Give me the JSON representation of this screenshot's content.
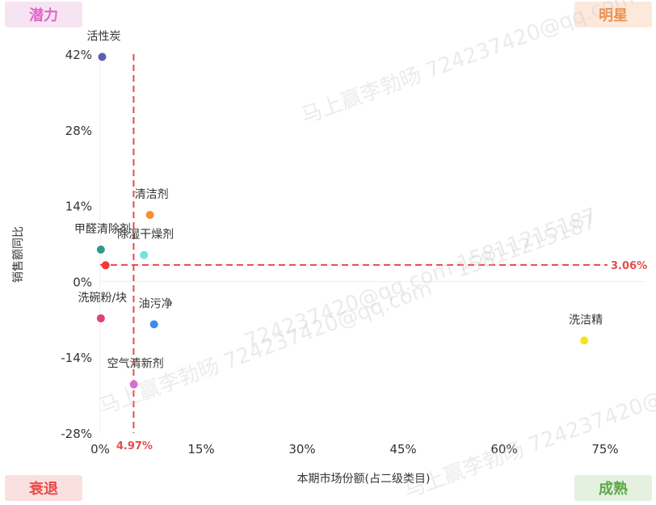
{
  "quadrants": {
    "top_left": {
      "label": "潜力",
      "color": "#e066c8",
      "bg": "#f7e4f3"
    },
    "top_right": {
      "label": "明星",
      "color": "#f0904e",
      "bg": "#fde9dc"
    },
    "bottom_left": {
      "label": "衰退",
      "color": "#e84a4a",
      "bg": "#fbe0e0"
    },
    "bottom_right": {
      "label": "成熟",
      "color": "#5ea84a",
      "bg": "#e3f1de"
    }
  },
  "watermarks": [
    "马上赢李勃旸 724237420@qq.com",
    "15811215187",
    "724237420@qq.com 15811215187",
    "马上赢李勃旸 724237420@qq.com",
    "马上赢李勃旸 724237420@"
  ],
  "chart_data": {
    "type": "scatter",
    "xlabel": "本期市场份额(占二级类目)",
    "ylabel": "销售额同比",
    "xlim": [
      0,
      75
    ],
    "ylim": [
      -28,
      42
    ],
    "x_ticks": [
      0,
      15,
      30,
      45,
      60,
      75
    ],
    "y_ticks": [
      42,
      28,
      14,
      0,
      -14,
      -28
    ],
    "x_tick_labels": [
      "0%",
      "15%",
      "30%",
      "45%",
      "60%",
      "75%"
    ],
    "y_tick_labels": [
      "42%",
      "28%",
      "14%",
      "0%",
      "-14%",
      "-28%"
    ],
    "reference_lines": {
      "x": {
        "value": 4.97,
        "label": "4.97%",
        "color": "#e84a4a"
      },
      "y": {
        "value": 3.06,
        "label": "3.06%",
        "color": "#e84a4a"
      }
    },
    "points": [
      {
        "name": "活性炭",
        "x": 0.3,
        "y": 41.5,
        "color": "#5b5fb5"
      },
      {
        "name": "清洁剂",
        "x": 7.4,
        "y": 12.3,
        "color": "#f5902e"
      },
      {
        "name": "甲醛清除剂",
        "x": 0.1,
        "y": 5.9,
        "color": "#2e9a8a"
      },
      {
        "name": "除湿干燥剂",
        "x": 6.5,
        "y": 4.9,
        "color": "#6fe5d8"
      },
      {
        "name": "",
        "x": 0.8,
        "y": 3.0,
        "color": "#f03a3a"
      },
      {
        "name": "洗碗粉/块",
        "x": 0.1,
        "y": -6.8,
        "color": "#e0407e"
      },
      {
        "name": "油污净",
        "x": 8.0,
        "y": -7.9,
        "color": "#3a8ef0"
      },
      {
        "name": "洗洁精",
        "x": 71.9,
        "y": -10.9,
        "color": "#f5e515"
      },
      {
        "name": "空气清新剂",
        "x": 5.0,
        "y": -19.0,
        "color": "#d46ed6"
      }
    ]
  }
}
